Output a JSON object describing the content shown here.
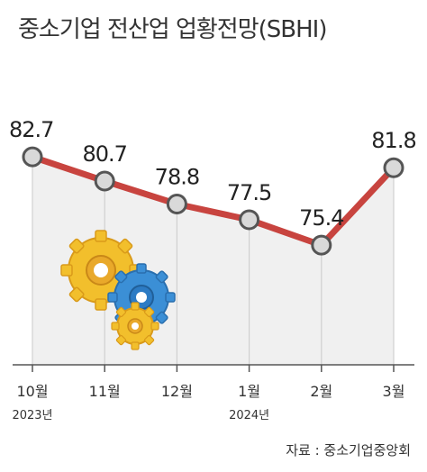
{
  "chart_data": {
    "type": "line",
    "title": "중소기업 전산업 업황전망(SBHI)",
    "categories": [
      "10월",
      "11월",
      "12월",
      "1월",
      "2월",
      "3월"
    ],
    "year_labels": [
      "2023년",
      "",
      "",
      "2024년",
      "",
      ""
    ],
    "values": [
      82.7,
      80.7,
      78.8,
      77.5,
      75.4,
      81.8
    ],
    "value_labels": [
      "82.7",
      "80.7",
      "78.8",
      "77.5",
      "75.4",
      "81.8"
    ],
    "ylim": [
      65.5,
      84.5
    ],
    "grid": false,
    "colors": {
      "line": "#c8443f",
      "marker_fill": "#d9d9d9",
      "marker_stroke": "#555555",
      "area": "#f0f0f0",
      "axis": "#555555"
    },
    "source": "자료 : 중소기업중앙회"
  }
}
